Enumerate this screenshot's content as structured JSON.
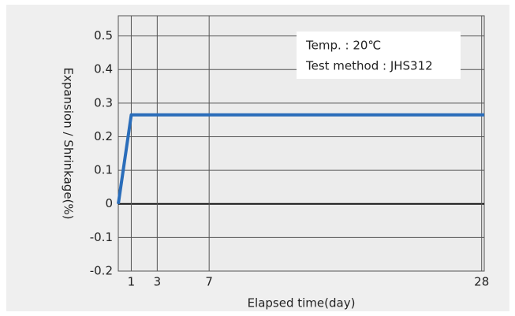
{
  "chart_data": {
    "type": "line",
    "xlabel": "Elapsed time(day)",
    "ylabel": "Expansion / Shrinkage(%)",
    "annotations": [
      "Temp. : 20℃",
      "Test method : JHS312"
    ],
    "x": [
      0,
      1,
      28.2
    ],
    "series": [
      {
        "name": "Expansion",
        "color": "#2a6dba",
        "values": [
          0,
          0.265,
          0.265
        ]
      }
    ],
    "xlim": [
      0,
      28.2
    ],
    "xticks": [
      1,
      3,
      7,
      28
    ],
    "ylim": [
      -0.2,
      0.56
    ],
    "yticks": [
      -0.2,
      -0.1,
      0,
      0.1,
      0.2,
      0.3,
      0.4,
      0.5
    ],
    "grid": true,
    "legend": false
  }
}
